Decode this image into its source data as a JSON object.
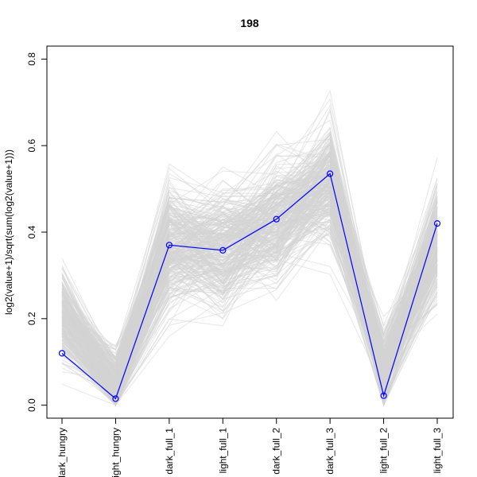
{
  "chart_data": {
    "type": "line",
    "title": "198",
    "xlabel": "",
    "ylabel": "log2(value+1)/sqrt(sum(log2(value+1)))",
    "categories": [
      "dark_hungry",
      "light_hungry",
      "dark_full_1",
      "light_full_1",
      "dark_full_2",
      "dark_full_3",
      "light_full_2",
      "light_full_3"
    ],
    "ylim": [
      -0.03,
      0.83
    ],
    "yticks": [
      0.0,
      0.2,
      0.4,
      0.6,
      0.8
    ],
    "ytick_labels": [
      "0.0",
      "0.2",
      "0.4",
      "0.6",
      "0.8"
    ],
    "grid": false,
    "legend": "none",
    "series": [
      {
        "values": [
          0.12,
          0.015,
          0.37,
          0.358,
          0.43,
          0.535,
          0.022,
          0.42
        ],
        "color": "#0000ff",
        "marker": "open-circle"
      }
    ],
    "background_profiles": {
      "color": "#d3d3d3",
      "description_count": 300,
      "per_category_range": [
        [
          0.0,
          0.41
        ],
        [
          0.0,
          0.31
        ],
        [
          0.1,
          0.64
        ],
        [
          0.1,
          0.62
        ],
        [
          0.17,
          0.7
        ],
        [
          0.3,
          0.8
        ],
        [
          0.0,
          0.34
        ],
        [
          0.1,
          0.6
        ]
      ],
      "per_category_center": [
        0.2,
        0.05,
        0.37,
        0.36,
        0.43,
        0.52,
        0.08,
        0.38
      ]
    }
  }
}
